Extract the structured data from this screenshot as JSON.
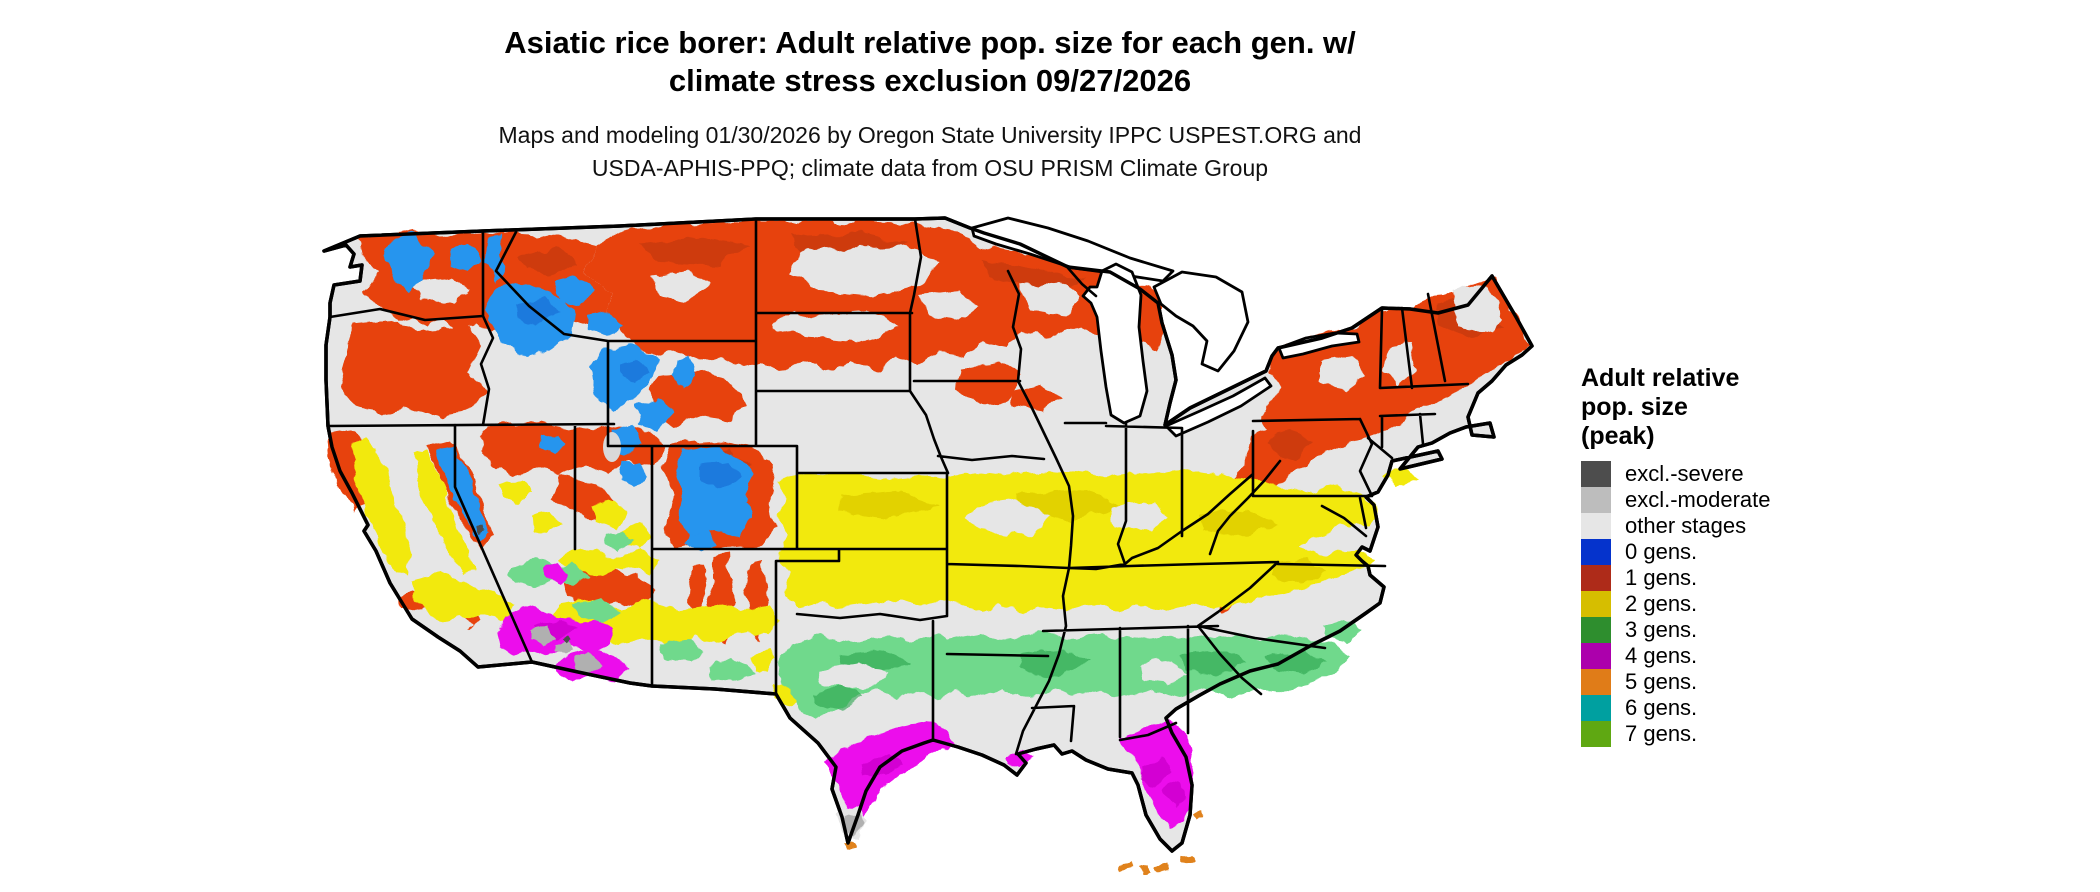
{
  "title": {
    "line1": "Asiatic rice borer: Adult relative pop. size for each gen. w/",
    "line2": "climate stress exclusion 09/27/2026"
  },
  "subtitle": {
    "line1": "Maps and modeling 01/30/2026 by Oregon State University IPPC USPEST.ORG and",
    "line2": "USDA-APHIS-PPQ; climate data from OSU PRISM Climate Group"
  },
  "legend": {
    "title_lines": [
      "Adult relative",
      "pop. size",
      "(peak)"
    ],
    "items": [
      {
        "label": "excl.-severe",
        "color": "#4D4D4D"
      },
      {
        "label": "excl.-moderate",
        "color": "#BDBDBD"
      },
      {
        "label": "other stages",
        "color": "#E6E6E6"
      },
      {
        "label": "0 gens.",
        "color": "#0533CC"
      },
      {
        "label": "1 gens.",
        "color": "#AE2B19"
      },
      {
        "label": "2 gens.",
        "color": "#D6BE00"
      },
      {
        "label": "3 gens.",
        "color": "#2E8E2E"
      },
      {
        "label": "4 gens.",
        "color": "#AC00AC"
      },
      {
        "label": "5 gens.",
        "color": "#E07C18"
      },
      {
        "label": "6 gens.",
        "color": "#00A0A0"
      },
      {
        "label": "7 gens.",
        "color": "#5FA812"
      }
    ]
  },
  "map": {
    "region": "Contiguous United States with state borders",
    "colors": {
      "land_background": "#E6E6E6",
      "water": "#FFFFFF",
      "border": "#000000",
      "gen0": "#2795EE",
      "gen0_dark": "#1565D0",
      "gen1": "#E7430E",
      "gen1_dark": "#BA3410",
      "gen2": "#F2E90A",
      "gen2_dark": "#D2BC00",
      "gen3": "#70D98C",
      "gen3_dark": "#27A14B",
      "gen4": "#EC0AEC",
      "gen4_dark": "#C004C0",
      "gen5": "#E0821E",
      "excl_moderate": "#B0B0B0",
      "excl_severe": "#4D4D4D",
      "salt_lake": "#D9D9D9"
    },
    "classes_on_map": [
      "0 gens.",
      "1 gens.",
      "2 gens.",
      "3 gens.",
      "4 gens.",
      "5 gens.",
      "other stages",
      "excl.-moderate",
      "excl.-severe"
    ]
  }
}
